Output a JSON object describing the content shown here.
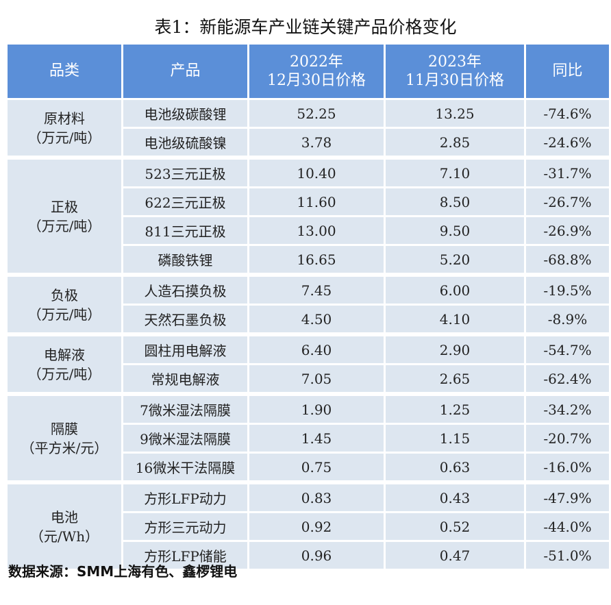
{
  "title": "表1：新能源车产业链关键产品价格变化",
  "headers": [
    "品类",
    "产品",
    "2022年\n12月30日价格",
    "2023年\n11月30日价格",
    "同比"
  ],
  "groups": [
    {
      "category": "原材料",
      "unit": "（万元/吨）",
      "rows": [
        [
          "电池级碳酸锂",
          "52.25",
          "13.25",
          "-74.6%"
        ],
        [
          "电池级硫酸镍",
          "3.78",
          "2.85",
          "-24.6%"
        ]
      ]
    },
    {
      "category": "正极",
      "unit": "（万元/吨）",
      "rows": [
        [
          "523三元正极",
          "10.40",
          "7.10",
          "-31.7%"
        ],
        [
          "622三元正极",
          "11.60",
          "8.50",
          "-26.7%"
        ],
        [
          "811三元正极",
          "13.00",
          "9.50",
          "-26.9%"
        ],
        [
          "磷酸铁锂",
          "16.65",
          "5.20",
          "-68.8%"
        ]
      ]
    },
    {
      "category": "负极",
      "unit": "（万元/吨）",
      "rows": [
        [
          "人造石摸负极",
          "7.45",
          "6.00",
          "-19.5%"
        ],
        [
          "天然石墨负极",
          "4.50",
          "4.10",
          "-8.9%"
        ]
      ]
    },
    {
      "category": "电解液",
      "unit": "（万元/吨）",
      "rows": [
        [
          "圆柱用电解液",
          "6.40",
          "2.90",
          "-54.7%"
        ],
        [
          "常规电解液",
          "7.05",
          "2.65",
          "-62.4%"
        ]
      ]
    },
    {
      "category": "隔膜",
      "unit": "（平方米/元）",
      "rows": [
        [
          "7微米湿法隔膜",
          "1.90",
          "1.25",
          "-34.2%"
        ],
        [
          "9微米湿法隔膜",
          "1.45",
          "1.15",
          "-20.7%"
        ],
        [
          "16微米干法隔膜",
          "0.75",
          "0.63",
          "-16.0%"
        ]
      ]
    },
    {
      "category": "电池",
      "unit": "（元/Wh）",
      "rows": [
        [
          "方形LFP动力",
          "0.83",
          "0.43",
          "-47.9%"
        ],
        [
          "方形三元动力",
          "0.92",
          "0.52",
          "-44.0%"
        ],
        [
          "方形LFP储能",
          "0.96",
          "0.47",
          "-51.0%"
        ]
      ]
    }
  ],
  "source": "数据来源：SMM上海有色、鑫椤锂电",
  "colors": {
    "header": "#5b8fd8",
    "cell": "#dde6f0"
  }
}
